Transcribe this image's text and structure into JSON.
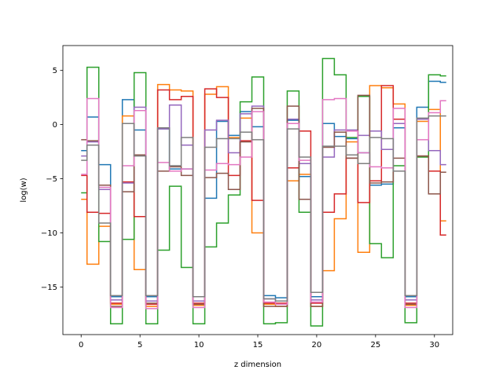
{
  "chart_data": {
    "type": "line",
    "drawstyle": "steps-mid",
    "title": "",
    "xlabel": "z dimension",
    "ylabel": "log(w)",
    "xlim": [
      -1.55,
      31.55
    ],
    "ylim": [
      -19.4,
      7.3
    ],
    "xticks": [
      0,
      5,
      10,
      15,
      20,
      25,
      30
    ],
    "xtick_labels": [
      "0",
      "5",
      "10",
      "15",
      "20",
      "25",
      "30"
    ],
    "yticks": [
      5,
      0,
      -5,
      -10,
      -15
    ],
    "ytick_labels": [
      "5",
      "0",
      "−5",
      "−10",
      "−15"
    ],
    "grid": false,
    "legend": "none",
    "x": [
      0,
      1,
      2,
      3,
      4,
      5,
      6,
      7,
      8,
      9,
      10,
      11,
      12,
      13,
      14,
      15,
      16,
      17,
      18,
      19,
      20,
      21,
      22,
      23,
      24,
      25,
      26,
      27,
      28,
      29,
      30,
      31
    ],
    "series": [
      {
        "color": "#1f77b4",
        "values": [
          -2.4,
          0.7,
          -3.7,
          -15.9,
          2.3,
          -0.5,
          -15.9,
          -0.4,
          -4.1,
          -4.1,
          -15.9,
          -6.8,
          0.3,
          -1.0,
          1.2,
          -0.2,
          -15.8,
          -16.0,
          0.4,
          -4.8,
          -15.9,
          0.1,
          -1.1,
          -1.3,
          -2.6,
          -5.6,
          -5.5,
          -0.3,
          -15.9,
          1.6,
          4.0,
          3.9
        ]
      },
      {
        "color": "#ff7f0e",
        "values": [
          -6.9,
          -12.9,
          -9.4,
          -16.6,
          0.8,
          -13.4,
          -16.8,
          3.7,
          3.2,
          3.1,
          -16.7,
          2.8,
          3.5,
          -1.2,
          0.6,
          -10.0,
          -16.6,
          -16.8,
          -5.2,
          -4.6,
          -16.8,
          -13.5,
          -8.7,
          -1.6,
          -11.8,
          3.6,
          3.4,
          1.9,
          -16.7,
          0.3,
          1.4,
          -8.9
        ]
      },
      {
        "color": "#2ca02c",
        "values": [
          -6.3,
          5.3,
          -10.8,
          -18.4,
          -10.6,
          4.8,
          -18.4,
          -11.6,
          -5.7,
          -13.2,
          -18.4,
          -11.3,
          -9.1,
          -6.5,
          2.1,
          4.4,
          -18.4,
          -18.3,
          3.1,
          -8.1,
          -18.6,
          6.1,
          4.6,
          -1.2,
          2.6,
          -11.0,
          -12.3,
          -3.8,
          -18.3,
          -3.0,
          4.6,
          4.5
        ]
      },
      {
        "color": "#d62728",
        "values": [
          -4.7,
          -8.1,
          -8.2,
          -16.5,
          -5.3,
          -8.5,
          -16.6,
          3.2,
          2.3,
          2.6,
          -16.5,
          3.3,
          2.5,
          -4.7,
          -1.5,
          -7.0,
          -16.5,
          -16.5,
          -4.0,
          -0.6,
          -16.5,
          -8.1,
          -6.4,
          -3.1,
          -7.2,
          -5.2,
          3.6,
          0.5,
          -16.5,
          -2.9,
          -4.3,
          -10.2
        ]
      },
      {
        "color": "#9467bd",
        "values": [
          -2.9,
          -1.6,
          -6.0,
          -16.2,
          -5.4,
          1.6,
          -16.3,
          -0.4,
          1.8,
          -1.9,
          -16.3,
          -0.5,
          0.4,
          -2.6,
          1.0,
          1.7,
          -16.1,
          -16.3,
          0.5,
          -3.6,
          -16.2,
          -3.0,
          -0.5,
          -0.5,
          -1.0,
          -0.6,
          -2.3,
          0.1,
          -16.2,
          0.5,
          -2.4,
          -3.7
        ]
      },
      {
        "color": "#8c564b",
        "values": [
          -1.4,
          -1.5,
          -5.6,
          -16.8,
          -6.2,
          -2.8,
          -16.5,
          -4.3,
          -3.9,
          -4.7,
          -16.6,
          -4.9,
          -4.5,
          -6.0,
          -1.6,
          1.5,
          -16.8,
          -16.8,
          1.7,
          -6.9,
          -16.8,
          -2.1,
          -0.7,
          -3.1,
          2.7,
          -5.4,
          -5.3,
          -3.1,
          -16.6,
          -2.9,
          -6.4,
          -4.4
        ]
      },
      {
        "color": "#e377c2",
        "values": [
          -4.6,
          2.4,
          -5.8,
          -16.9,
          -3.8,
          1.3,
          -17.0,
          -3.5,
          -4.3,
          -4.1,
          -16.9,
          -4.2,
          -3.6,
          -3.7,
          -3.0,
          1.2,
          -16.4,
          -16.6,
          0.1,
          -3.3,
          -16.4,
          2.3,
          2.4,
          -0.6,
          -2.6,
          -3.9,
          -4.0,
          1.5,
          -16.9,
          -1.4,
          1.1,
          2.2
        ]
      },
      {
        "color": "#7f7f7f",
        "values": [
          -3.3,
          -1.9,
          -9.1,
          -15.8,
          0.1,
          -2.9,
          -15.8,
          -0.3,
          -3.8,
          -1.2,
          -15.9,
          -2.1,
          -1.3,
          -1.3,
          -0.7,
          -1.4,
          -16.1,
          -16.3,
          -0.4,
          -3.0,
          -15.5,
          -2.0,
          -2.0,
          -2.8,
          -3.6,
          -1.2,
          -1.3,
          -4.3,
          -15.8,
          0.6,
          0.8,
          0.8
        ]
      }
    ]
  }
}
